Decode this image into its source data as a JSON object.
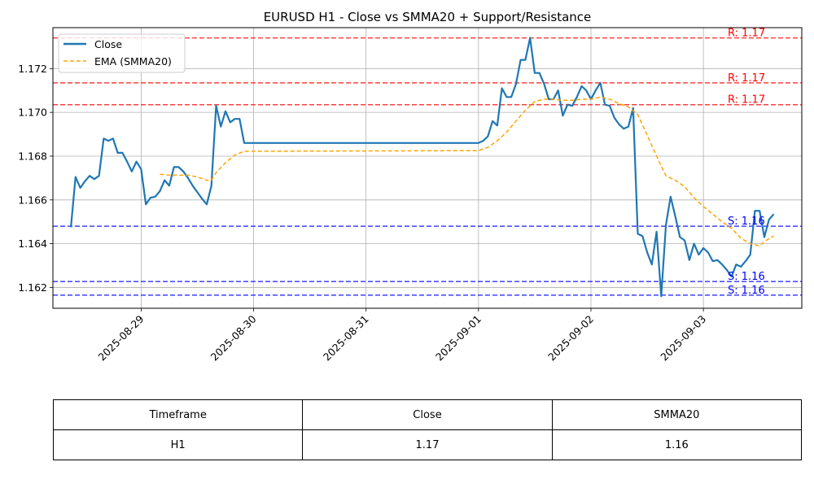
{
  "chart_data": {
    "type": "line",
    "title": "EURUSD H1 - Close vs SMMA20 + Support/Resistance",
    "xlabel": "",
    "ylabel": "",
    "x_ticks": [
      "2025-08-29",
      "2025-08-30",
      "2025-08-31",
      "2025-09-01",
      "2025-09-02",
      "2025-09-03"
    ],
    "y_ticks": [
      "1.162",
      "1.164",
      "1.166",
      "1.168",
      "1.170",
      "1.172"
    ],
    "xlim": [
      "2025-08-28 05:10",
      "2025-09-03 21:00"
    ],
    "ylim": [
      1.16105,
      1.17387
    ],
    "grid": true,
    "legend_position": "top-left",
    "series": [
      {
        "name": "Close",
        "color": "#1f77b4",
        "style": "solid",
        "points": [
          [
            "2025-08-28 09:00",
            1.16475
          ],
          [
            "2025-08-28 10:00",
            1.16705
          ],
          [
            "2025-08-28 11:00",
            1.16655
          ],
          [
            "2025-08-28 12:00",
            1.16685
          ],
          [
            "2025-08-28 13:00",
            1.1671
          ],
          [
            "2025-08-28 14:00",
            1.16695
          ],
          [
            "2025-08-28 15:00",
            1.1671
          ],
          [
            "2025-08-28 16:00",
            1.1688
          ],
          [
            "2025-08-28 17:00",
            1.1687
          ],
          [
            "2025-08-28 18:00",
            1.1688
          ],
          [
            "2025-08-28 19:00",
            1.16815
          ],
          [
            "2025-08-28 20:00",
            1.16815
          ],
          [
            "2025-08-28 21:00",
            1.16775
          ],
          [
            "2025-08-28 22:00",
            1.1673
          ],
          [
            "2025-08-28 23:00",
            1.16775
          ],
          [
            "2025-08-29 00:00",
            1.1674
          ],
          [
            "2025-08-29 01:00",
            1.1658
          ],
          [
            "2025-08-29 02:00",
            1.1661
          ],
          [
            "2025-08-29 03:00",
            1.16615
          ],
          [
            "2025-08-29 04:00",
            1.1664
          ],
          [
            "2025-08-29 05:00",
            1.1669
          ],
          [
            "2025-08-29 06:00",
            1.16665
          ],
          [
            "2025-08-29 07:00",
            1.1675
          ],
          [
            "2025-08-29 08:00",
            1.1675
          ],
          [
            "2025-08-29 09:00",
            1.1673
          ],
          [
            "2025-08-29 10:00",
            1.167
          ],
          [
            "2025-08-29 11:00",
            1.16665
          ],
          [
            "2025-08-29 12:00",
            1.16635
          ],
          [
            "2025-08-29 13:00",
            1.16605
          ],
          [
            "2025-08-29 14:00",
            1.1658
          ],
          [
            "2025-08-29 15:00",
            1.16665
          ],
          [
            "2025-08-29 16:00",
            1.1703
          ],
          [
            "2025-08-29 17:00",
            1.16935
          ],
          [
            "2025-08-29 18:00",
            1.17005
          ],
          [
            "2025-08-29 19:00",
            1.16955
          ],
          [
            "2025-08-29 20:00",
            1.1697
          ],
          [
            "2025-08-29 21:00",
            1.1697
          ],
          [
            "2025-08-29 22:00",
            1.1686
          ],
          [
            "2025-09-01 00:00",
            1.1686
          ],
          [
            "2025-09-01 01:00",
            1.1687
          ],
          [
            "2025-09-01 02:00",
            1.1689
          ],
          [
            "2025-09-01 03:00",
            1.1696
          ],
          [
            "2025-09-01 04:00",
            1.1694
          ],
          [
            "2025-09-01 05:00",
            1.1711
          ],
          [
            "2025-09-01 06:00",
            1.1707
          ],
          [
            "2025-09-01 07:00",
            1.1707
          ],
          [
            "2025-09-01 08:00",
            1.1713
          ],
          [
            "2025-09-01 09:00",
            1.1724
          ],
          [
            "2025-09-01 10:00",
            1.1724
          ],
          [
            "2025-09-01 11:00",
            1.1734
          ],
          [
            "2025-09-01 12:00",
            1.1718
          ],
          [
            "2025-09-01 13:00",
            1.1718
          ],
          [
            "2025-09-01 14:00",
            1.1713
          ],
          [
            "2025-09-01 15:00",
            1.1706
          ],
          [
            "2025-09-01 16:00",
            1.1706
          ],
          [
            "2025-09-01 17:00",
            1.171
          ],
          [
            "2025-09-01 18:00",
            1.16985
          ],
          [
            "2025-09-01 19:00",
            1.17035
          ],
          [
            "2025-09-01 20:00",
            1.1703
          ],
          [
            "2025-09-01 21:00",
            1.1707
          ],
          [
            "2025-09-01 22:00",
            1.1712
          ],
          [
            "2025-09-01 23:00",
            1.171
          ],
          [
            "2025-09-02 00:00",
            1.1706
          ],
          [
            "2025-09-02 01:00",
            1.171
          ],
          [
            "2025-09-02 02:00",
            1.17135
          ],
          [
            "2025-09-02 03:00",
            1.17035
          ],
          [
            "2025-09-02 04:00",
            1.1703
          ],
          [
            "2025-09-02 05:00",
            1.16975
          ],
          [
            "2025-09-02 06:00",
            1.16945
          ],
          [
            "2025-09-02 07:00",
            1.16925
          ],
          [
            "2025-09-02 08:00",
            1.16935
          ],
          [
            "2025-09-02 09:00",
            1.1702
          ],
          [
            "2025-09-02 10:00",
            1.16445
          ],
          [
            "2025-09-02 11:00",
            1.16435
          ],
          [
            "2025-09-02 12:00",
            1.1636
          ],
          [
            "2025-09-02 13:00",
            1.16305
          ],
          [
            "2025-09-02 14:00",
            1.16455
          ],
          [
            "2025-09-02 15:00",
            1.1616
          ],
          [
            "2025-09-02 16:00",
            1.16485
          ],
          [
            "2025-09-02 17:00",
            1.16615
          ],
          [
            "2025-09-02 18:00",
            1.16525
          ],
          [
            "2025-09-02 19:00",
            1.1643
          ],
          [
            "2025-09-02 20:00",
            1.16415
          ],
          [
            "2025-09-02 21:00",
            1.16325
          ],
          [
            "2025-09-02 22:00",
            1.164
          ],
          [
            "2025-09-02 23:00",
            1.1635
          ],
          [
            "2025-09-03 00:00",
            1.1638
          ],
          [
            "2025-09-03 01:00",
            1.1636
          ],
          [
            "2025-09-03 02:00",
            1.1632
          ],
          [
            "2025-09-03 03:00",
            1.16325
          ],
          [
            "2025-09-03 04:00",
            1.16305
          ],
          [
            "2025-09-03 05:00",
            1.1628
          ],
          [
            "2025-09-03 06:00",
            1.1625
          ],
          [
            "2025-09-03 07:00",
            1.16305
          ],
          [
            "2025-09-03 08:00",
            1.16295
          ],
          [
            "2025-09-03 09:00",
            1.1632
          ],
          [
            "2025-09-03 10:00",
            1.1635
          ],
          [
            "2025-09-03 11:00",
            1.1655
          ],
          [
            "2025-09-03 12:00",
            1.1655
          ],
          [
            "2025-09-03 13:00",
            1.1643
          ],
          [
            "2025-09-03 14:00",
            1.1651
          ],
          [
            "2025-09-03 15:00",
            1.16535
          ]
        ]
      },
      {
        "name": "EMA (SMMA20)",
        "color": "#ffa500",
        "style": "dashed",
        "points": [
          [
            "2025-08-29 04:00",
            1.16717
          ],
          [
            "2025-08-29 06:00",
            1.16713
          ],
          [
            "2025-08-29 08:00",
            1.16713
          ],
          [
            "2025-08-29 10:00",
            1.16713
          ],
          [
            "2025-08-29 12:00",
            1.16705
          ],
          [
            "2025-08-29 14:00",
            1.1669
          ],
          [
            "2025-08-29 15:00",
            1.1669
          ],
          [
            "2025-08-29 16:00",
            1.16725
          ],
          [
            "2025-08-29 18:00",
            1.1677
          ],
          [
            "2025-08-29 20:00",
            1.16805
          ],
          [
            "2025-08-29 22:00",
            1.16822
          ],
          [
            "2025-09-01 00:00",
            1.16825
          ],
          [
            "2025-09-01 02:00",
            1.1684
          ],
          [
            "2025-09-01 04:00",
            1.1687
          ],
          [
            "2025-09-01 06:00",
            1.1691
          ],
          [
            "2025-09-01 08:00",
            1.1696
          ],
          [
            "2025-09-01 10:00",
            1.1701
          ],
          [
            "2025-09-01 12:00",
            1.1705
          ],
          [
            "2025-09-01 14:00",
            1.1706
          ],
          [
            "2025-09-01 16:00",
            1.1706
          ],
          [
            "2025-09-01 18:00",
            1.17055
          ],
          [
            "2025-09-01 20:00",
            1.17055
          ],
          [
            "2025-09-01 22:00",
            1.1706
          ],
          [
            "2025-09-02 00:00",
            1.1706
          ],
          [
            "2025-09-02 02:00",
            1.1707
          ],
          [
            "2025-09-02 04:00",
            1.1706
          ],
          [
            "2025-09-02 06:00",
            1.1704
          ],
          [
            "2025-09-02 08:00",
            1.17025
          ],
          [
            "2025-09-02 10:00",
            1.1699
          ],
          [
            "2025-09-02 12:00",
            1.16895
          ],
          [
            "2025-09-02 14:00",
            1.168
          ],
          [
            "2025-09-02 16:00",
            1.1671
          ],
          [
            "2025-09-02 18:00",
            1.1669
          ],
          [
            "2025-09-02 20:00",
            1.1666
          ],
          [
            "2025-09-02 22:00",
            1.1661
          ],
          [
            "2025-09-03 00:00",
            1.1657
          ],
          [
            "2025-09-03 02:00",
            1.16535
          ],
          [
            "2025-09-03 04:00",
            1.165
          ],
          [
            "2025-09-03 06:00",
            1.1647
          ],
          [
            "2025-09-03 08:00",
            1.16425
          ],
          [
            "2025-09-03 10:00",
            1.164
          ],
          [
            "2025-09-03 12:00",
            1.1639
          ],
          [
            "2025-09-03 13:00",
            1.1641
          ],
          [
            "2025-09-03 15:00",
            1.16435
          ]
        ]
      }
    ],
    "resistance_levels": [
      {
        "value": 1.1734,
        "label": "R: 1.17"
      },
      {
        "value": 1.17135,
        "label": "R: 1.17"
      },
      {
        "value": 1.17035,
        "label": "R: 1.17"
      }
    ],
    "support_levels": [
      {
        "value": 1.1648,
        "label": "S: 1.16"
      },
      {
        "value": 1.16227,
        "label": "S: 1.16"
      },
      {
        "value": 1.16165,
        "label": "S: 1.16"
      }
    ],
    "colors": {
      "resistance": "#ff0000",
      "support": "#0000ff"
    }
  },
  "table": {
    "headers": [
      "Timeframe",
      "Close",
      "SMMA20"
    ],
    "row": [
      "H1",
      "1.17",
      "1.16"
    ]
  }
}
